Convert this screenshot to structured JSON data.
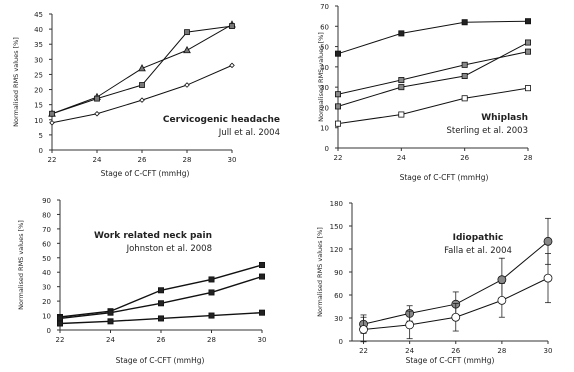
{
  "chart_data": [
    {
      "type": "line",
      "title": "Cervicogenic headache",
      "subtitle": "Jull et al. 2004",
      "xlabel": "Stage of C-CFT (mmHg)",
      "ylabel": "Normalised RMS values [%]",
      "x": [
        22,
        24,
        26,
        28,
        30
      ],
      "xlim": [
        22,
        30
      ],
      "ylim": [
        0,
        45
      ],
      "yticks": [
        0,
        5,
        10,
        15,
        20,
        25,
        30,
        35,
        40,
        45
      ],
      "series": [
        {
          "marker": "triangle",
          "values": [
            12,
            17.5,
            27,
            33,
            41.5
          ]
        },
        {
          "marker": "square",
          "values": [
            12,
            17,
            21.5,
            39,
            41
          ]
        },
        {
          "marker": "diamond",
          "values": [
            9,
            12,
            16.5,
            21.5,
            28
          ]
        }
      ]
    },
    {
      "type": "line",
      "title": "Whiplash",
      "subtitle": "Sterling et al. 2003",
      "xlabel": "Stage of C-CFT (mmHg)",
      "ylabel": "Normalised RMS values [%]",
      "x": [
        22,
        24,
        26,
        28
      ],
      "xlim": [
        22,
        28
      ],
      "ylim": [
        0,
        70
      ],
      "yticks": [
        0,
        10,
        20,
        30,
        40,
        50,
        60,
        70
      ],
      "series": [
        {
          "marker": "square-filled",
          "values": [
            46.5,
            56.5,
            62,
            62.5
          ]
        },
        {
          "marker": "square-gray",
          "values": [
            26.5,
            33.5,
            41,
            47.5
          ]
        },
        {
          "marker": "square-gray",
          "values": [
            20.5,
            30,
            35.5,
            52
          ]
        },
        {
          "marker": "square-open",
          "values": [
            12,
            16.5,
            24.5,
            29.5
          ]
        }
      ]
    },
    {
      "type": "line",
      "title": "Work related neck pain",
      "subtitle": "Johnston et al. 2008",
      "xlabel": "Stage of C-CFT (mmHg)",
      "ylabel": "Normalised RMS values [%]",
      "x": [
        22,
        24,
        26,
        28,
        30
      ],
      "xlim": [
        22,
        30
      ],
      "ylim": [
        0,
        90
      ],
      "yticks": [
        0,
        10,
        20,
        30,
        40,
        50,
        60,
        70,
        80,
        90
      ],
      "series": [
        {
          "marker": "square-filled",
          "values": [
            9,
            13,
            27.5,
            35,
            45
          ]
        },
        {
          "marker": "square-filled",
          "values": [
            8,
            12,
            18.5,
            26,
            37
          ]
        },
        {
          "marker": "square-filled",
          "values": [
            4.5,
            6,
            8,
            10,
            12
          ]
        }
      ]
    },
    {
      "type": "line",
      "title": "Idiopathic",
      "subtitle": "Falla et al. 2004",
      "xlabel": "Stage of C-CFT (mmHg)",
      "ylabel": "Normalised RMS values [%]",
      "x": [
        22,
        24,
        26,
        28,
        30
      ],
      "xlim": [
        21.5,
        30
      ],
      "ylim": [
        0,
        180
      ],
      "yticks": [
        0,
        30,
        60,
        90,
        120,
        150,
        180
      ],
      "series": [
        {
          "marker": "circle-gray",
          "values": [
            22,
            36,
            48,
            80,
            130
          ],
          "errors": [
            12,
            10,
            16,
            28,
            30
          ]
        },
        {
          "marker": "circle-open",
          "values": [
            15,
            21,
            31,
            53,
            82
          ],
          "errors": [
            16,
            18,
            18,
            22,
            32
          ]
        }
      ]
    }
  ]
}
